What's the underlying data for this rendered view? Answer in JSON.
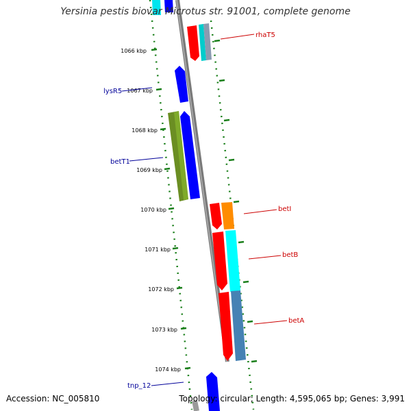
{
  "title": "Yersinia pestis biovar Microtus str. 91001, complete genome",
  "accession": "Accession: NC_005810",
  "summary": "Topology: circular; Length: 4,595,065 bp; Genes: 3,991",
  "colors": {
    "backbone": "#888888",
    "tick": "#1a7f1a",
    "label_red": "#cc0000",
    "label_blue": "#000099"
  },
  "scale": {
    "ticks": [
      "1066 kbp",
      "1067 kbp",
      "1068 kbp",
      "1069 kbp",
      "1070 kbp",
      "1071 kbp",
      "1072 kbp",
      "1073 kbp",
      "1074 kbp"
    ]
  },
  "genes": [
    {
      "name": "rhaT5",
      "label_color": "red"
    },
    {
      "name": "lysR5",
      "label_color": "blue"
    },
    {
      "name": "betT1",
      "label_color": "blue"
    },
    {
      "name": "betI",
      "label_color": "red"
    },
    {
      "name": "betB",
      "label_color": "red"
    },
    {
      "name": "betA",
      "label_color": "red"
    },
    {
      "name": "tnp_12",
      "label_color": "blue"
    }
  ]
}
